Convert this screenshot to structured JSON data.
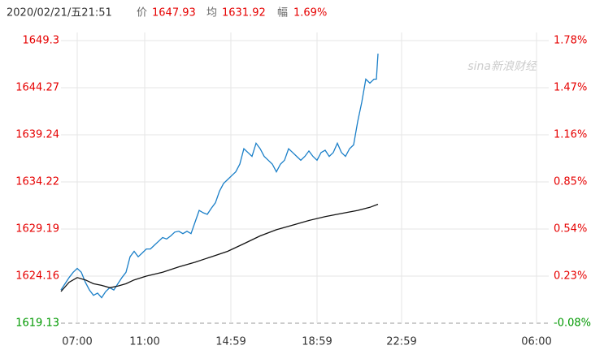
{
  "header": {
    "datetime": "2020/02/21/五21:51",
    "price_label": "价",
    "price": "1647.93",
    "avg_label": "均",
    "avg": "1631.92",
    "change_label": "幅",
    "change": "1.69%"
  },
  "watermark": "sina新浪财经",
  "chart_data": {
    "type": "line",
    "up_color": "#e60000",
    "down_color": "#009900",
    "xlim": [
      0,
      600
    ],
    "xticks": [
      {
        "value": 20,
        "label": "07:00"
      },
      {
        "value": 103,
        "label": "11:00"
      },
      {
        "value": 209,
        "label": "14:59"
      },
      {
        "value": 315,
        "label": "18:59"
      },
      {
        "value": 419,
        "label": "22:59"
      },
      {
        "value": 585,
        "label": "06:00"
      }
    ],
    "ylim": [
      1619.13,
      1649.3
    ],
    "yticks": [
      1649.3,
      1644.27,
      1639.24,
      1634.22,
      1629.19,
      1624.16,
      1619.13
    ],
    "y2lim": [
      -0.08,
      1.78
    ],
    "y2ticks": [
      {
        "value": 1.78,
        "label": "1.78%"
      },
      {
        "value": 1.47,
        "label": "1.47%"
      },
      {
        "value": 1.16,
        "label": "1.16%"
      },
      {
        "value": 0.85,
        "label": "0.85%"
      },
      {
        "value": 0.54,
        "label": "0.54%"
      },
      {
        "value": 0.23,
        "label": "0.23%"
      },
      {
        "value": -0.08,
        "label": "-0.08%"
      }
    ],
    "grid": true,
    "series": [
      {
        "color": "#1a7fc8",
        "x": [
          0,
          5,
          10,
          15,
          20,
          25,
          30,
          35,
          40,
          45,
          50,
          55,
          60,
          65,
          70,
          75,
          80,
          85,
          90,
          95,
          100,
          105,
          110,
          115,
          120,
          125,
          130,
          135,
          140,
          145,
          150,
          155,
          160,
          165,
          170,
          175,
          180,
          185,
          190,
          195,
          200,
          205,
          210,
          215,
          220,
          225,
          230,
          235,
          240,
          245,
          250,
          255,
          260,
          265,
          270,
          275,
          280,
          285,
          290,
          295,
          300,
          305,
          310,
          315,
          320,
          325,
          330,
          335,
          340,
          345,
          350,
          355,
          360,
          365,
          370,
          375,
          380,
          385,
          388,
          390
        ],
        "values": [
          1622.68,
          1623.34,
          1624.0,
          1624.57,
          1624.98,
          1624.57,
          1623.5,
          1622.68,
          1622.1,
          1622.35,
          1621.85,
          1622.51,
          1622.92,
          1622.68,
          1623.34,
          1624.0,
          1624.57,
          1626.22,
          1626.8,
          1626.22,
          1626.63,
          1627.05,
          1627.05,
          1627.46,
          1627.87,
          1628.28,
          1628.12,
          1628.45,
          1628.86,
          1628.94,
          1628.69,
          1628.94,
          1628.69,
          1629.93,
          1631.17,
          1630.92,
          1630.76,
          1631.41,
          1631.99,
          1633.23,
          1634.05,
          1634.47,
          1634.88,
          1635.29,
          1636.11,
          1637.76,
          1637.35,
          1636.94,
          1638.34,
          1637.76,
          1636.94,
          1636.53,
          1636.11,
          1635.29,
          1636.11,
          1636.53,
          1637.76,
          1637.35,
          1636.94,
          1636.53,
          1636.94,
          1637.52,
          1636.94,
          1636.53,
          1637.35,
          1637.6,
          1636.94,
          1637.35,
          1638.34,
          1637.35,
          1636.94,
          1637.76,
          1638.17,
          1640.65,
          1642.71,
          1645.18,
          1644.77,
          1645.18,
          1645.18,
          1647.9
        ]
      },
      {
        "color": "#111111",
        "x": [
          0,
          10,
          20,
          30,
          40,
          50,
          60,
          70,
          80,
          90,
          105,
          125,
          145,
          165,
          185,
          205,
          225,
          245,
          265,
          285,
          305,
          325,
          345,
          365,
          380,
          390
        ],
        "values": [
          1622.51,
          1623.5,
          1624.0,
          1623.75,
          1623.34,
          1623.17,
          1622.92,
          1623.09,
          1623.34,
          1623.75,
          1624.16,
          1624.57,
          1625.15,
          1625.64,
          1626.22,
          1626.8,
          1627.62,
          1628.45,
          1629.11,
          1629.6,
          1630.1,
          1630.51,
          1630.84,
          1631.17,
          1631.5,
          1631.83
        ]
      }
    ]
  }
}
